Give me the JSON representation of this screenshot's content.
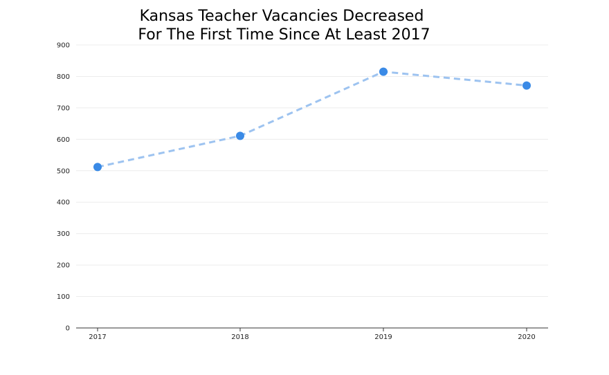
{
  "chart_data": {
    "type": "line",
    "title_lines": [
      "Kansas Teacher Vacancies Decreased",
      " For The First Time Since At Least 2017"
    ],
    "xlabel": "",
    "ylabel": "",
    "categories": [
      "2017",
      "2018",
      "2019",
      "2020"
    ],
    "values": [
      512,
      611,
      815,
      771
    ],
    "ylim": [
      0,
      900
    ],
    "yticks": [
      0,
      100,
      200,
      300,
      400,
      500,
      600,
      700,
      800,
      900
    ],
    "grid": true,
    "line_style": "dashed",
    "colors": {
      "line": "#9dc3f0",
      "marker": "#3a8ae6",
      "grid": "#ececec",
      "axis": "#333333"
    }
  }
}
